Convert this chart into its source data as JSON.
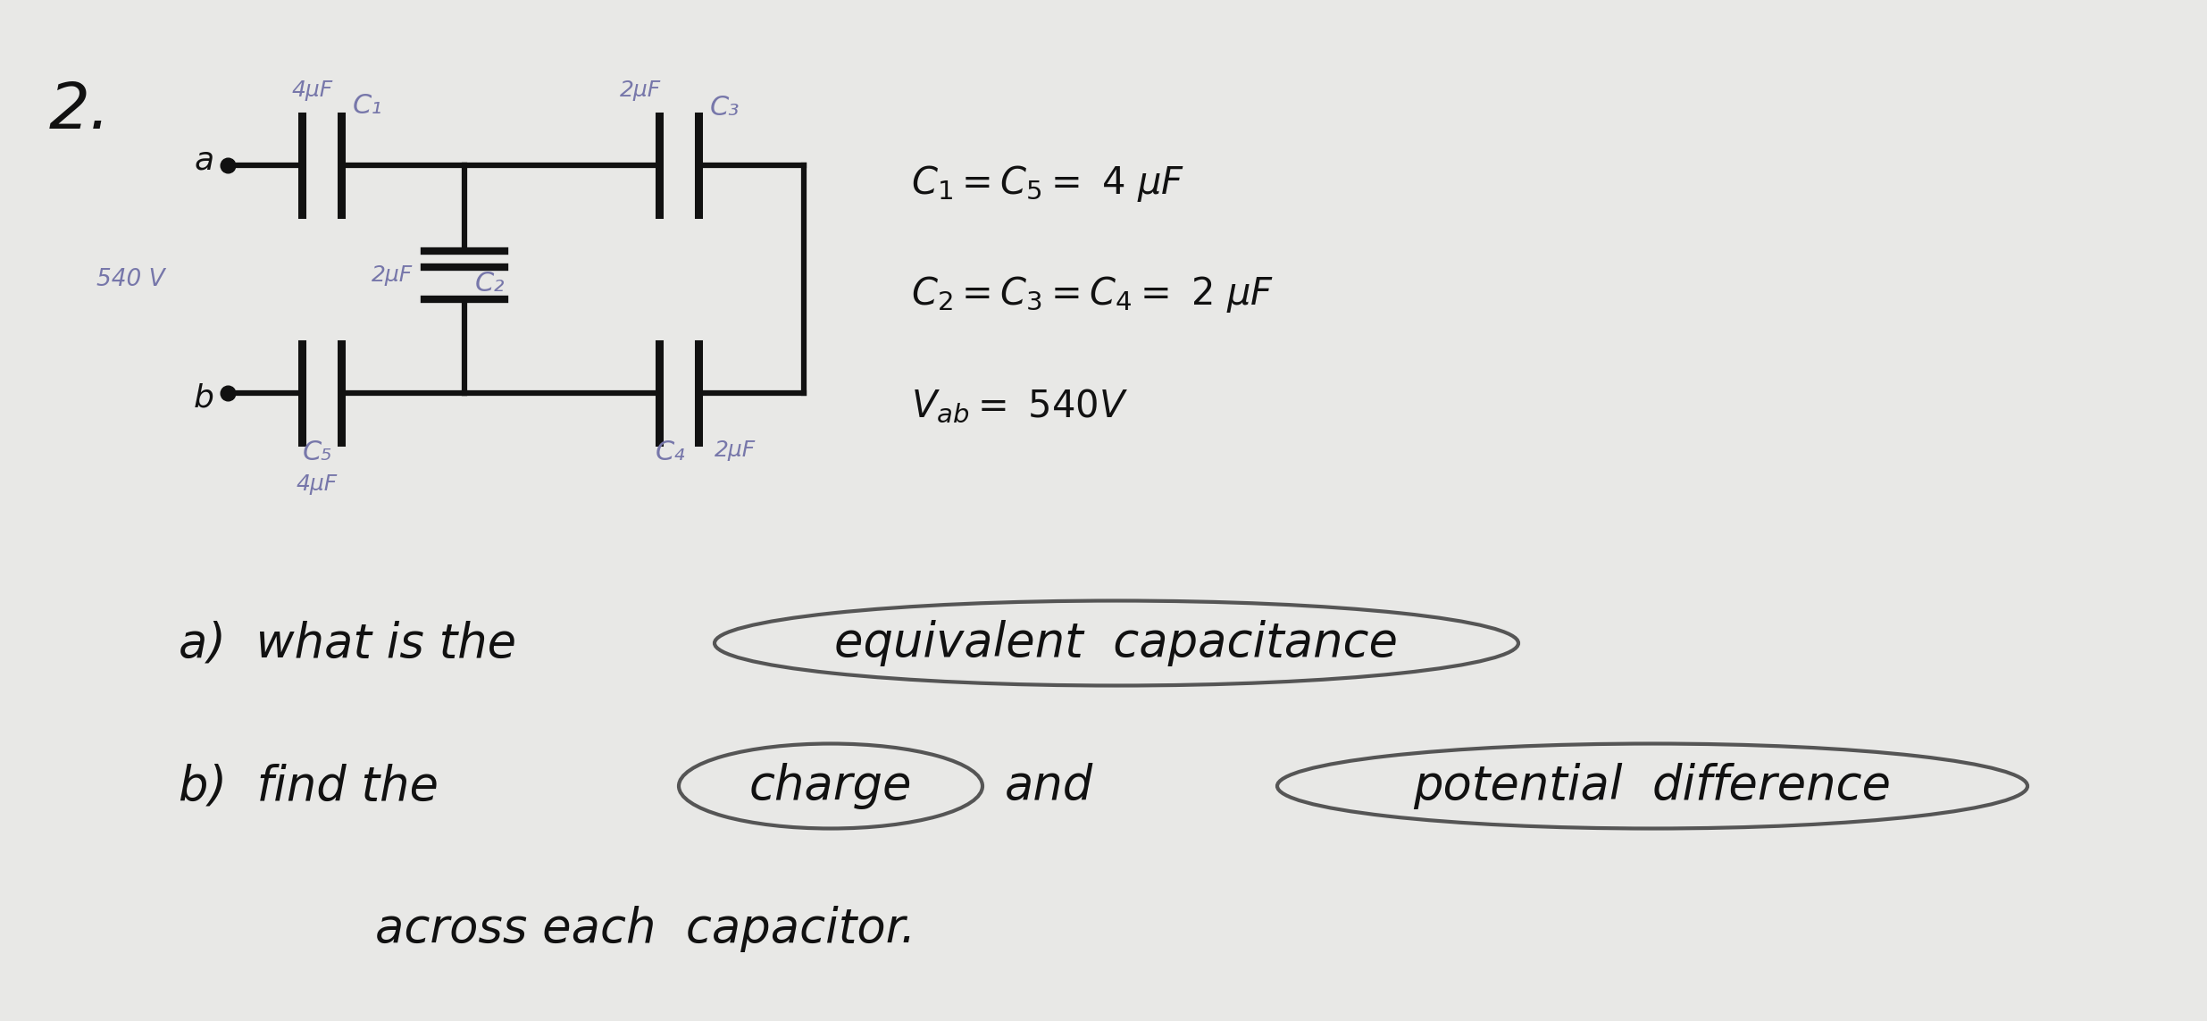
{
  "bg_color": "#e8e8e6",
  "ink_color": "#111111",
  "pencil_color": "#7777aa",
  "title_num": "2.",
  "node_a_label": "a",
  "node_b_label": "b",
  "voltage_label": "540 V",
  "C1_label": "C₁",
  "C1_val": "4μF",
  "C2_label": "C₂",
  "C2_val": "2μF",
  "C3_label": "C₃",
  "C3_val": "2μF",
  "C4_label": "C₄",
  "C4_val": "2μF",
  "C5_label": "C₅",
  "C5_val": "4μF"
}
